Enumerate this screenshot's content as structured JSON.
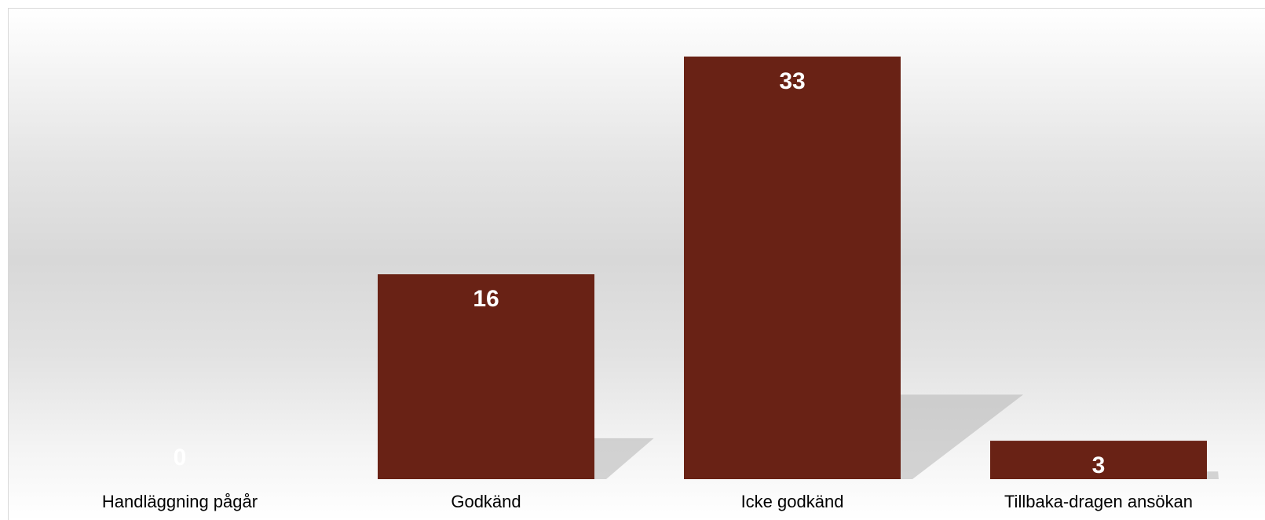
{
  "chart_data": {
    "type": "bar",
    "categories": [
      "Handläggning pågår",
      "Godkänd",
      "Icke godkänd",
      "Tillbaka-dragen ansökan"
    ],
    "values": [
      0,
      16,
      33,
      3
    ],
    "title": "",
    "xlabel": "",
    "ylabel": "",
    "ylim": [
      0,
      33
    ],
    "grid": false,
    "legend": "none",
    "colors": {
      "bar": "#692215",
      "data_label": "#ffffff",
      "shadow": "#b4b4b4"
    }
  }
}
